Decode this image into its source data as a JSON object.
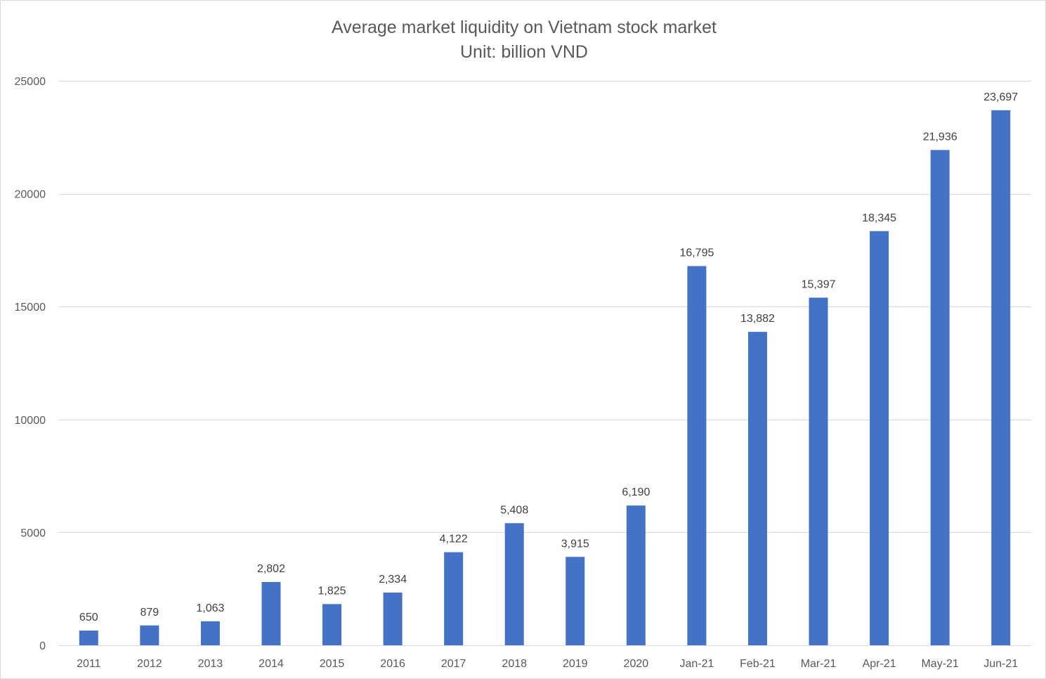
{
  "chart_data": {
    "type": "bar",
    "title": "Average market liquidity on Vietnam stock market",
    "subtitle": "Unit: billion VND",
    "xlabel": "",
    "ylabel": "",
    "categories": [
      "2011",
      "2012",
      "2013",
      "2014",
      "2015",
      "2016",
      "2017",
      "2018",
      "2019",
      "2020",
      "Jan-21",
      "Feb-21",
      "Mar-21",
      "Apr-21",
      "May-21",
      "Jun-21"
    ],
    "values": [
      650,
      879,
      1063,
      2802,
      1825,
      2334,
      4122,
      5408,
      3915,
      6190,
      16795,
      13882,
      15397,
      18345,
      21936,
      23697
    ],
    "data_labels": [
      "650",
      "879",
      "1,063",
      "2,802",
      "1,825",
      "2,334",
      "4,122",
      "5,408",
      "3,915",
      "6,190",
      "16,795",
      "13,882",
      "15,397",
      "18,345",
      "21,936",
      "23,697"
    ],
    "ylim": [
      0,
      25000
    ],
    "yticks": [
      0,
      5000,
      10000,
      15000,
      20000,
      25000
    ],
    "ytick_labels": [
      "0",
      "5000",
      "10000",
      "15000",
      "20000",
      "25000"
    ],
    "grid": true,
    "legend": "none",
    "bar_color": "#4472C4"
  }
}
